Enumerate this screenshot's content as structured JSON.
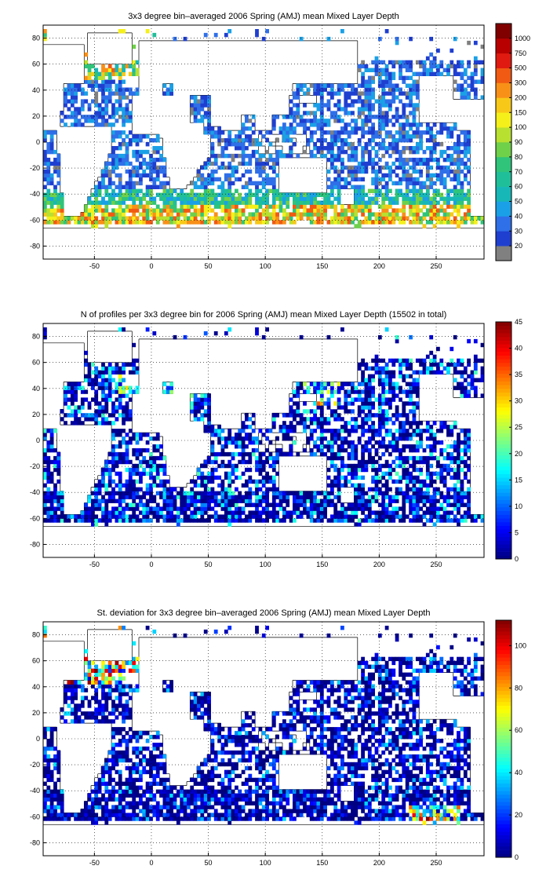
{
  "chart_data": [
    {
      "type": "heatmap",
      "title": "3x3 degree bin–averaged 2006 Spring (AMJ) mean Mixed Layer Depth",
      "x_ticks": [
        -50,
        0,
        50,
        100,
        150,
        200,
        250
      ],
      "y_ticks": [
        80,
        60,
        40,
        20,
        0,
        -20,
        -40,
        -60,
        -80
      ],
      "xlim": [
        -95,
        292
      ],
      "ylim": [
        -90,
        90
      ],
      "grid": true,
      "bin_size_deg": 3,
      "colorbar": {
        "scale": "categorical",
        "tick_labels": [
          "20",
          "30",
          "40",
          "50",
          "60",
          "70",
          "80",
          "90",
          "100",
          "150",
          "200",
          "300",
          "500",
          "750",
          "1000"
        ],
        "colors": [
          "#808080",
          "#1f3fd0",
          "#2f6fe8",
          "#1aa0e6",
          "#18b7b7",
          "#1fbf9a",
          "#2fc47a",
          "#6fd04a",
          "#b8e030",
          "#f5f01a",
          "#f8c818",
          "#f89018",
          "#f05a12",
          "#e01a10",
          "#b80000",
          "#800000"
        ]
      }
    },
    {
      "type": "heatmap",
      "title": "N of profiles per 3x3 degree bin for 2006 Spring (AMJ) mean Mixed Layer Depth  (15502 in total)",
      "x_ticks": [
        -50,
        0,
        50,
        100,
        150,
        200,
        250
      ],
      "y_ticks": [
        80,
        60,
        40,
        20,
        0,
        -20,
        -40,
        -60,
        -80
      ],
      "xlim": [
        -95,
        292
      ],
      "ylim": [
        -90,
        90
      ],
      "grid": true,
      "bin_size_deg": 3,
      "total_profiles": 15502,
      "colorbar": {
        "scale": "jet",
        "range": [
          0,
          45
        ],
        "tick_labels": [
          "0",
          "5",
          "10",
          "15",
          "20",
          "25",
          "30",
          "35",
          "40",
          "45"
        ]
      }
    },
    {
      "type": "heatmap",
      "title": "St. deviation for 3x3 degree bin–averaged 2006 Spring (AMJ) mean Mixed Layer Depth",
      "x_ticks": [
        -50,
        0,
        50,
        100,
        150,
        200,
        250
      ],
      "y_ticks": [
        80,
        60,
        40,
        20,
        0,
        -20,
        -40,
        -60,
        -80
      ],
      "xlim": [
        -95,
        292
      ],
      "ylim": [
        -90,
        90
      ],
      "grid": true,
      "bin_size_deg": 3,
      "colorbar": {
        "scale": "jet",
        "range": [
          0,
          112
        ],
        "tick_labels": [
          "0",
          "20",
          "40",
          "60",
          "80",
          "100"
        ]
      }
    }
  ]
}
